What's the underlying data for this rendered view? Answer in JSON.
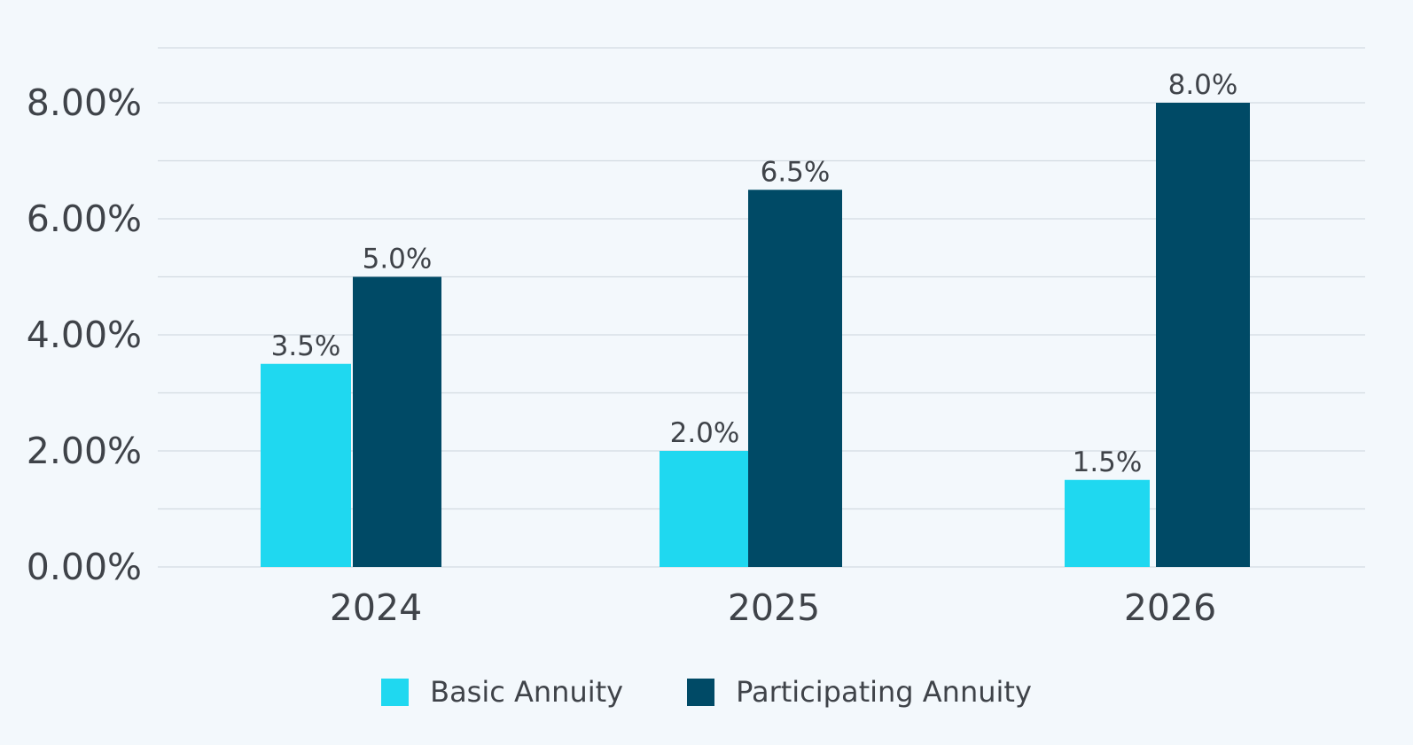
{
  "chart_data": {
    "type": "bar",
    "categories": [
      "2024",
      "2025",
      "2026"
    ],
    "series": [
      {
        "name": "Basic Annuity",
        "values": [
          3.5,
          2.0,
          1.5
        ],
        "labels": [
          "3.5%",
          "2.0%",
          "1.5%"
        ],
        "color": "#1fd8f0"
      },
      {
        "name": "Participating Annuity",
        "values": [
          5.0,
          6.5,
          8.0
        ],
        "labels": [
          "5.0%",
          "6.5%",
          "8.0%"
        ],
        "color": "#004a66"
      }
    ],
    "y_ticks": [
      "0.00%",
      "2.00%",
      "4.00%",
      "6.00%",
      "8.00%"
    ],
    "y_tick_values": [
      0,
      2,
      4,
      6,
      8
    ],
    "ylim": [
      0,
      9
    ],
    "grid": true,
    "legend_position": "bottom"
  },
  "legend": {
    "items": [
      {
        "label": "Basic Annuity",
        "color": "#1fd8f0"
      },
      {
        "label": "Participating Annuity",
        "color": "#004a66"
      }
    ]
  }
}
